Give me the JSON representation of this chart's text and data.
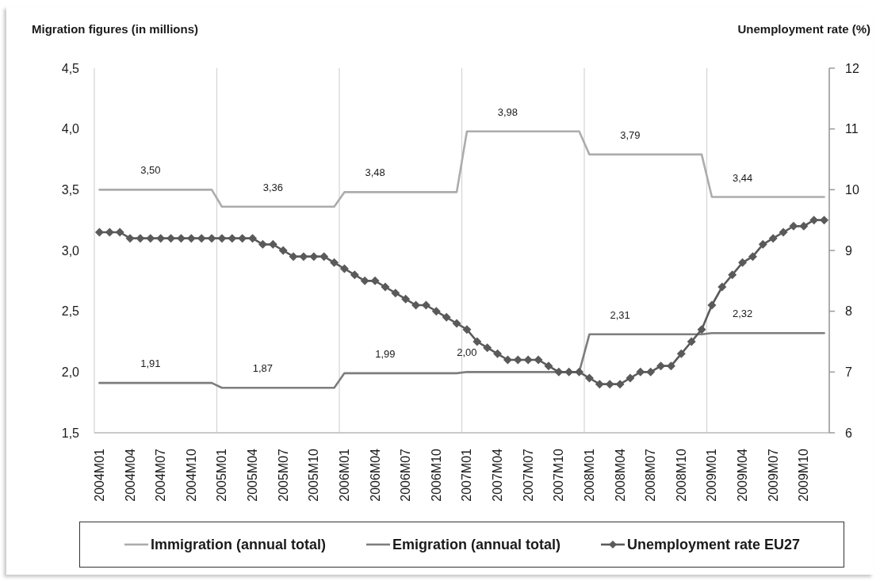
{
  "chart_data": {
    "type": "line",
    "ylabel": "Migration figures (in millions)",
    "y2label": "Unemployment rate (%)",
    "categories": [
      "2004M01",
      null,
      null,
      "2004M04",
      null,
      null,
      "2004M07",
      null,
      null,
      "2004M10",
      null,
      null,
      "2005M01",
      null,
      null,
      "2005M04",
      null,
      null,
      "2005M07",
      null,
      null,
      "2005M10",
      null,
      null,
      "2006M01",
      null,
      null,
      "2006M04",
      null,
      null,
      "2006M07",
      null,
      null,
      "2006M10",
      null,
      null,
      "2007M01",
      null,
      null,
      "2007M04",
      null,
      null,
      "2007M07",
      null,
      null,
      "2007M10",
      null,
      null,
      "2008M01",
      null,
      null,
      "2008M04",
      null,
      null,
      "2008M07",
      null,
      null,
      "2008M10",
      null,
      null,
      "2009M01",
      null,
      null,
      "2009M04",
      null,
      null,
      "2009M07",
      null,
      null,
      "2009M10",
      null,
      null
    ],
    "series": [
      {
        "name": "Immigration (annual total)",
        "color": "#acacac",
        "values": [
          3.5,
          3.5,
          3.5,
          3.5,
          3.5,
          3.5,
          3.5,
          3.5,
          3.5,
          3.5,
          3.5,
          3.5,
          3.36,
          3.36,
          3.36,
          3.36,
          3.36,
          3.36,
          3.36,
          3.36,
          3.36,
          3.36,
          3.36,
          3.36,
          3.48,
          3.48,
          3.48,
          3.48,
          3.48,
          3.48,
          3.48,
          3.48,
          3.48,
          3.48,
          3.48,
          3.48,
          3.98,
          3.98,
          3.98,
          3.98,
          3.98,
          3.98,
          3.98,
          3.98,
          3.98,
          3.98,
          3.98,
          3.98,
          3.79,
          3.79,
          3.79,
          3.79,
          3.79,
          3.79,
          3.79,
          3.79,
          3.79,
          3.79,
          3.79,
          3.79,
          3.44,
          3.44,
          3.44,
          3.44,
          3.44,
          3.44,
          3.44,
          3.44,
          3.44,
          3.44,
          3.44,
          3.44
        ],
        "value_labels": [
          null,
          null,
          null,
          null,
          null,
          "3,50",
          null,
          null,
          null,
          null,
          null,
          null,
          null,
          null,
          null,
          null,
          null,
          "3,36",
          null,
          null,
          null,
          null,
          null,
          null,
          null,
          null,
          null,
          "3,48",
          null,
          null,
          null,
          null,
          null,
          null,
          null,
          null,
          null,
          null,
          null,
          null,
          "3,98",
          null,
          null,
          null,
          null,
          null,
          null,
          null,
          null,
          null,
          null,
          null,
          "3,79",
          null,
          null,
          null,
          null,
          null,
          null,
          null,
          null,
          null,
          null,
          "3,44",
          null,
          null,
          null,
          null,
          null,
          null,
          null,
          null
        ]
      },
      {
        "name": "Emigration (annual total)",
        "color": "#7d7d7d",
        "values": [
          1.91,
          1.91,
          1.91,
          1.91,
          1.91,
          1.91,
          1.91,
          1.91,
          1.91,
          1.91,
          1.91,
          1.91,
          1.87,
          1.87,
          1.87,
          1.87,
          1.87,
          1.87,
          1.87,
          1.87,
          1.87,
          1.87,
          1.87,
          1.87,
          1.99,
          1.99,
          1.99,
          1.99,
          1.99,
          1.99,
          1.99,
          1.99,
          1.99,
          1.99,
          1.99,
          1.99,
          2.0,
          2.0,
          2.0,
          2.0,
          2.0,
          2.0,
          2.0,
          2.0,
          2.0,
          2.0,
          2.0,
          2.0,
          2.31,
          2.31,
          2.31,
          2.31,
          2.31,
          2.31,
          2.31,
          2.31,
          2.31,
          2.31,
          2.31,
          2.31,
          2.32,
          2.32,
          2.32,
          2.32,
          2.32,
          2.32,
          2.32,
          2.32,
          2.32,
          2.32,
          2.32,
          2.32
        ],
        "value_labels": [
          null,
          null,
          null,
          null,
          null,
          "1,91",
          null,
          null,
          null,
          null,
          null,
          null,
          null,
          null,
          null,
          null,
          "1,87",
          null,
          null,
          null,
          null,
          null,
          null,
          null,
          null,
          null,
          null,
          null,
          "1,99",
          null,
          null,
          null,
          null,
          null,
          null,
          null,
          "2,00",
          null,
          null,
          null,
          null,
          null,
          null,
          null,
          null,
          null,
          null,
          null,
          null,
          null,
          null,
          "2,31",
          null,
          null,
          null,
          null,
          null,
          null,
          null,
          null,
          null,
          null,
          null,
          "2,32",
          null,
          null,
          null,
          null,
          null,
          null,
          null,
          null
        ]
      },
      {
        "name": "Unemployment rate EU27",
        "color": "#5a5a5a",
        "axis": "y2",
        "marker": "diamond",
        "values": [
          9.3,
          9.3,
          9.3,
          9.2,
          9.2,
          9.2,
          9.2,
          9.2,
          9.2,
          9.2,
          9.2,
          9.2,
          9.2,
          9.2,
          9.2,
          9.2,
          9.1,
          9.1,
          9.0,
          8.9,
          8.9,
          8.9,
          8.9,
          8.8,
          8.7,
          8.6,
          8.5,
          8.5,
          8.4,
          8.3,
          8.2,
          8.1,
          8.1,
          8.0,
          7.9,
          7.8,
          7.7,
          7.5,
          7.4,
          7.3,
          7.2,
          7.2,
          7.2,
          7.2,
          7.1,
          7.0,
          7.0,
          7.0,
          6.9,
          6.8,
          6.8,
          6.8,
          6.9,
          7.0,
          7.0,
          7.1,
          7.1,
          7.3,
          7.5,
          7.7,
          8.1,
          8.4,
          8.6,
          8.8,
          8.9,
          9.1,
          9.2,
          9.3,
          9.4,
          9.4,
          9.5,
          9.5
        ]
      }
    ],
    "ylim": [
      1.5,
      4.5
    ],
    "yticks": [
      {
        "value": 1.5,
        "label": "1,5"
      },
      {
        "value": 2,
        "label": "2,0"
      },
      {
        "value": 2.5,
        "label": "2,5"
      },
      {
        "value": 3,
        "label": "3,0"
      },
      {
        "value": 3.5,
        "label": "3,5"
      },
      {
        "value": 4,
        "label": "4,0"
      },
      {
        "value": 4.5,
        "label": "4,5"
      }
    ],
    "y2lim": [
      6,
      12
    ],
    "y2ticks": [
      6,
      7,
      8,
      9,
      10,
      11,
      12
    ],
    "grid": "x",
    "legend": "bottom"
  }
}
